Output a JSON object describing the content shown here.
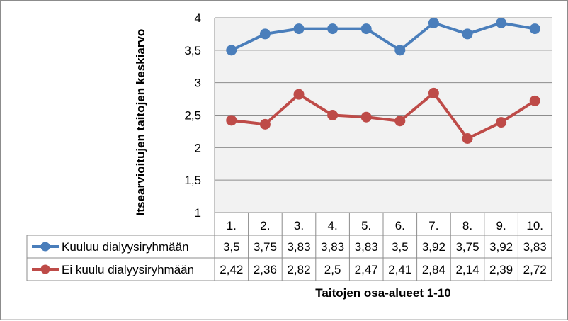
{
  "chart_data": {
    "type": "line",
    "categories": [
      "1.",
      "2.",
      "3.",
      "4.",
      "5.",
      "6.",
      "7.",
      "8.",
      "9.",
      "10."
    ],
    "series": [
      {
        "name": "Kuuluu dialyysiryhmään",
        "color": "#4a7ebb",
        "values": [
          3.5,
          3.75,
          3.83,
          3.83,
          3.83,
          3.5,
          3.92,
          3.75,
          3.92,
          3.83
        ],
        "labels": [
          "3,5",
          "3,75",
          "3,83",
          "3,83",
          "3,83",
          "3,5",
          "3,92",
          "3,75",
          "3,92",
          "3,83"
        ]
      },
      {
        "name": "Ei kuulu dialyysiryhmään",
        "color": "#be4b48",
        "values": [
          2.42,
          2.36,
          2.82,
          2.5,
          2.47,
          2.41,
          2.84,
          2.14,
          2.39,
          2.72
        ],
        "labels": [
          "2,42",
          "2,36",
          "2,82",
          "2,5",
          "2,47",
          "2,41",
          "2,84",
          "2,14",
          "2,39",
          "2,72"
        ]
      }
    ],
    "xlabel": "Taitojen osa-alueet 1-10",
    "ylabel": "Itsearvioitujen taitojen keskiarvo",
    "ylim": [
      1,
      4
    ],
    "yticks": [
      1,
      1.5,
      2,
      2.5,
      3,
      3.5,
      4
    ],
    "ytick_labels": [
      "1",
      "1,5",
      "2",
      "2,5",
      "3",
      "3,5",
      "4"
    ],
    "grid": true,
    "legend": "data-table",
    "plot_background": "#f2f2f2"
  }
}
